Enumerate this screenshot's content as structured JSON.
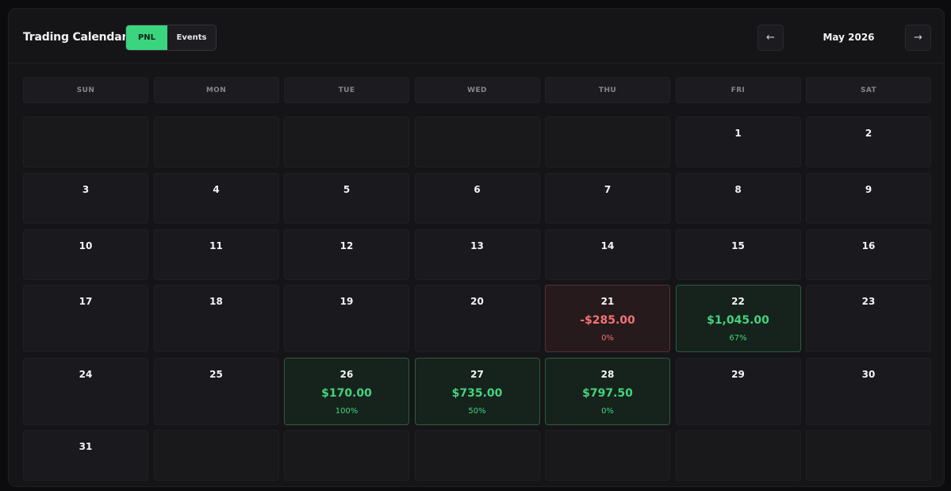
{
  "header": {
    "title": "Trading Calendar",
    "toggle": {
      "pnl_label": "PNL",
      "events_label": "Events",
      "active": "PNL"
    },
    "prev_label": "←",
    "next_label": "→",
    "month_label": "May 2026"
  },
  "weekdays": [
    "SUN",
    "MON",
    "TUE",
    "WED",
    "THU",
    "FRI",
    "SAT"
  ],
  "colors": {
    "accent": "#3bd47f",
    "profit": "#46d27e",
    "loss": "#f07373"
  },
  "weeks": [
    [
      null,
      null,
      null,
      null,
      null,
      {
        "day": "1"
      },
      {
        "day": "2"
      }
    ],
    [
      {
        "day": "3"
      },
      {
        "day": "4"
      },
      {
        "day": "5"
      },
      {
        "day": "6"
      },
      {
        "day": "7"
      },
      {
        "day": "8"
      },
      {
        "day": "9"
      }
    ],
    [
      {
        "day": "10"
      },
      {
        "day": "11"
      },
      {
        "day": "12"
      },
      {
        "day": "13"
      },
      {
        "day": "14"
      },
      {
        "day": "15"
      },
      {
        "day": "16"
      }
    ],
    [
      {
        "day": "17"
      },
      {
        "day": "18"
      },
      {
        "day": "19"
      },
      {
        "day": "20"
      },
      {
        "day": "21",
        "pnl": "-$285.00",
        "pct": "0%",
        "status": "loss"
      },
      {
        "day": "22",
        "pnl": "$1,045.00",
        "pct": "67%",
        "status": "win"
      },
      {
        "day": "23"
      }
    ],
    [
      {
        "day": "24"
      },
      {
        "day": "25"
      },
      {
        "day": "26",
        "pnl": "$170.00",
        "pct": "100%",
        "status": "win"
      },
      {
        "day": "27",
        "pnl": "$735.00",
        "pct": "50%",
        "status": "win"
      },
      {
        "day": "28",
        "pnl": "$797.50",
        "pct": "0%",
        "status": "win"
      },
      {
        "day": "29"
      },
      {
        "day": "30"
      }
    ],
    [
      {
        "day": "31"
      },
      null,
      null,
      null,
      null,
      null,
      null
    ]
  ]
}
